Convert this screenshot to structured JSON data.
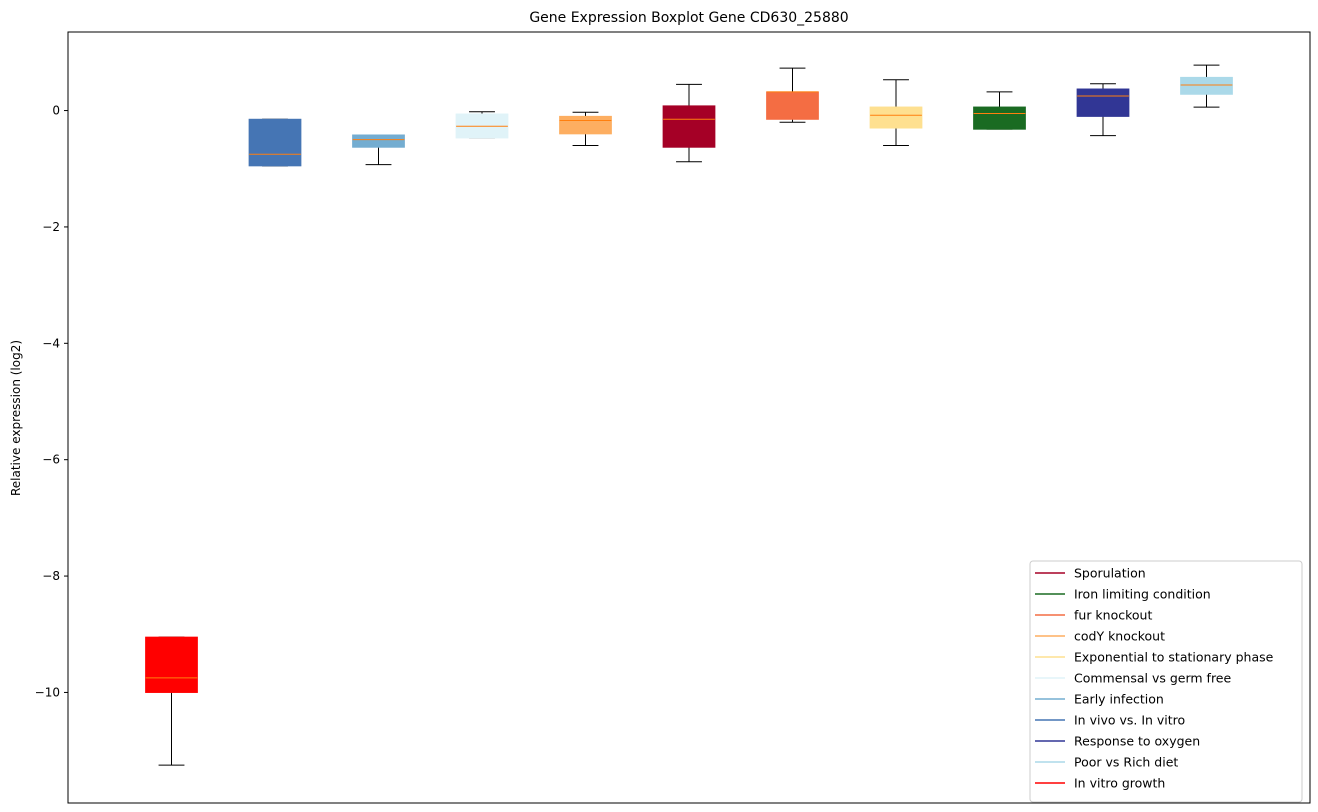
{
  "chart_data": {
    "type": "boxplot",
    "title": "Gene Expression Boxplot Gene CD630_25880",
    "xlabel": "",
    "ylabel": "Relative expression (log2)",
    "ylim": [
      -11.9,
      1.35
    ],
    "yticks": [
      0,
      -2,
      -4,
      -6,
      -8,
      -10
    ],
    "ytick_labels": [
      "0",
      "−2",
      "−4",
      "−6",
      "−8",
      "−10"
    ],
    "legend_position": "lower-right",
    "median_color": "#ff7f0e",
    "boxes": [
      {
        "name": "In vitro growth",
        "color": "#ff0000",
        "whisker_low": -11.25,
        "q1": -10.0,
        "median": -9.75,
        "q3": -9.05,
        "whisker_high": -9.05
      },
      {
        "name": "In vivo vs. In vitro",
        "color": "#4575b4",
        "whisker_low": -0.95,
        "q1": -0.95,
        "median": -0.75,
        "q3": -0.15,
        "whisker_high": -0.15
      },
      {
        "name": "Early infection",
        "color": "#74add1",
        "whisker_low": -0.93,
        "q1": -0.63,
        "median": -0.5,
        "q3": -0.42,
        "whisker_high": -0.42
      },
      {
        "name": "Commensal vs germ free",
        "color": "#e0f3f8",
        "whisker_low": -0.47,
        "q1": -0.47,
        "median": -0.27,
        "q3": -0.06,
        "whisker_high": -0.02
      },
      {
        "name": "codY knockout",
        "color": "#fdae61",
        "whisker_low": -0.6,
        "q1": -0.4,
        "median": -0.17,
        "q3": -0.1,
        "whisker_high": -0.03
      },
      {
        "name": "Sporulation",
        "color": "#a50026",
        "whisker_low": -0.88,
        "q1": -0.63,
        "median": -0.15,
        "q3": 0.08,
        "whisker_high": 0.45
      },
      {
        "name": "fur knockout",
        "color": "#f46d43",
        "whisker_low": -0.2,
        "q1": -0.15,
        "median": 0.32,
        "q3": 0.32,
        "whisker_high": 0.73
      },
      {
        "name": "Exponential to stationary phase",
        "color": "#fee090",
        "whisker_low": -0.6,
        "q1": -0.3,
        "median": -0.08,
        "q3": 0.06,
        "whisker_high": 0.53
      },
      {
        "name": "Iron limiting condition",
        "color": "#1a6b22",
        "whisker_low": -0.32,
        "q1": -0.32,
        "median": -0.05,
        "q3": 0.06,
        "whisker_high": 0.32
      },
      {
        "name": "Response to oxygen",
        "color": "#313695",
        "whisker_low": -0.43,
        "q1": -0.1,
        "median": 0.25,
        "q3": 0.37,
        "whisker_high": 0.46
      },
      {
        "name": "Poor vs Rich diet",
        "color": "#abd9e9",
        "whisker_low": 0.06,
        "q1": 0.28,
        "median": 0.44,
        "q3": 0.57,
        "whisker_high": 0.78
      }
    ],
    "legend": [
      {
        "label": "Sporulation",
        "color": "#a50026"
      },
      {
        "label": "Iron limiting condition",
        "color": "#1a6b22"
      },
      {
        "label": "fur knockout",
        "color": "#f46d43"
      },
      {
        "label": "codY knockout",
        "color": "#fdae61"
      },
      {
        "label": "Exponential to stationary phase",
        "color": "#fee090"
      },
      {
        "label": "Commensal vs germ free",
        "color": "#e0f3f8"
      },
      {
        "label": "Early infection",
        "color": "#74add1"
      },
      {
        "label": "In vivo vs. In vitro",
        "color": "#4575b4"
      },
      {
        "label": "Response to oxygen",
        "color": "#313695"
      },
      {
        "label": "Poor vs Rich diet",
        "color": "#abd9e9"
      },
      {
        "label": "In vitro growth",
        "color": "#ff0000"
      }
    ]
  }
}
